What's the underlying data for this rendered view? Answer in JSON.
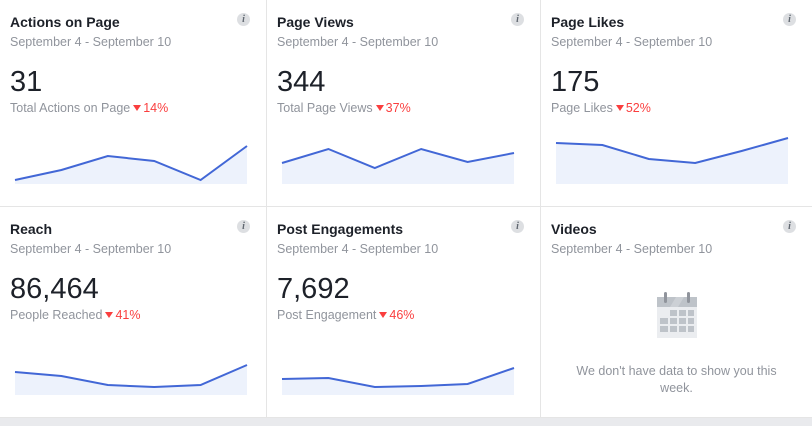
{
  "cards": [
    {
      "title": "Actions on Page",
      "date": "September 4 - September 10",
      "value": "31",
      "label": "Total Actions on Page",
      "change": "14%",
      "trend": [
        4,
        14,
        28,
        23,
        4,
        38
      ]
    },
    {
      "title": "Page Views",
      "date": "September 4 - September 10",
      "value": "344",
      "label": "Total Page Views",
      "change": "37%",
      "trend": [
        21,
        35,
        16,
        35,
        22,
        31
      ]
    },
    {
      "title": "Page Likes",
      "date": "September 4 - September 10",
      "value": "175",
      "label": "Page Likes",
      "change": "52%",
      "trend": [
        41,
        39,
        25,
        21,
        33,
        46
      ]
    },
    {
      "title": "Reach",
      "date": "September 4 - September 10",
      "value": "86,464",
      "label": "People Reached",
      "change": "41%",
      "trend": [
        23,
        19,
        10,
        8,
        10,
        30
      ]
    },
    {
      "title": "Post Engagements",
      "date": "September 4 - September 10",
      "value": "7,692",
      "label": "Post Engagement",
      "change": "46%",
      "trend": [
        16,
        17,
        8,
        9,
        11,
        27
      ]
    },
    {
      "title": "Videos",
      "date": "September 4 - September 10",
      "empty_text": "We don't have data to show you this week."
    }
  ],
  "colors": {
    "line": "#4267d6",
    "fill": "#edf2fc",
    "negative": "#fa3e3e"
  }
}
